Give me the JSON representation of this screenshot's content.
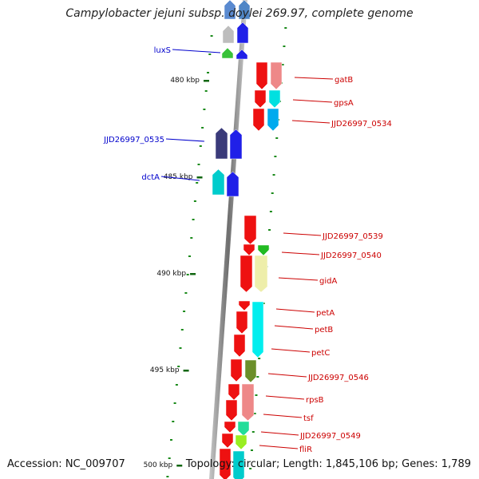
{
  "title": "Campylobacter jejuni subsp. doylei 269.97, complete genome",
  "footer": {
    "accession": "Accession: NC_009707",
    "summary": "Topology: circular; Length: 1,845,106 bp; Genes: 1,789"
  },
  "colors": {
    "backbone": "#8a8a8a",
    "tick": "#1a8a1a",
    "left_label": "#0000cc",
    "right_label": "#cc0000",
    "cds_forward": "#2020e8",
    "cds_reverse": "#ee1111"
  },
  "scale_labels": [
    "480 kbp",
    "485 kbp",
    "490 kbp",
    "495 kbp",
    "500 kbp"
  ],
  "left_genes": [
    {
      "label": "luxS"
    },
    {
      "label": "JJD26997_0535"
    },
    {
      "label": "dctA"
    }
  ],
  "right_genes": [
    {
      "label": "gatB"
    },
    {
      "label": "gpsA"
    },
    {
      "label": "JJD26997_0534"
    },
    {
      "label": "JJD26997_0539"
    },
    {
      "label": "JJD26997_0540"
    },
    {
      "label": "gidA"
    },
    {
      "label": "petA"
    },
    {
      "label": "petB"
    },
    {
      "label": "petC"
    },
    {
      "label": "JJD26997_0546"
    },
    {
      "label": "rpsB"
    },
    {
      "label": "tsf"
    },
    {
      "label": "JJD26997_0549"
    },
    {
      "label": "fliR"
    }
  ]
}
